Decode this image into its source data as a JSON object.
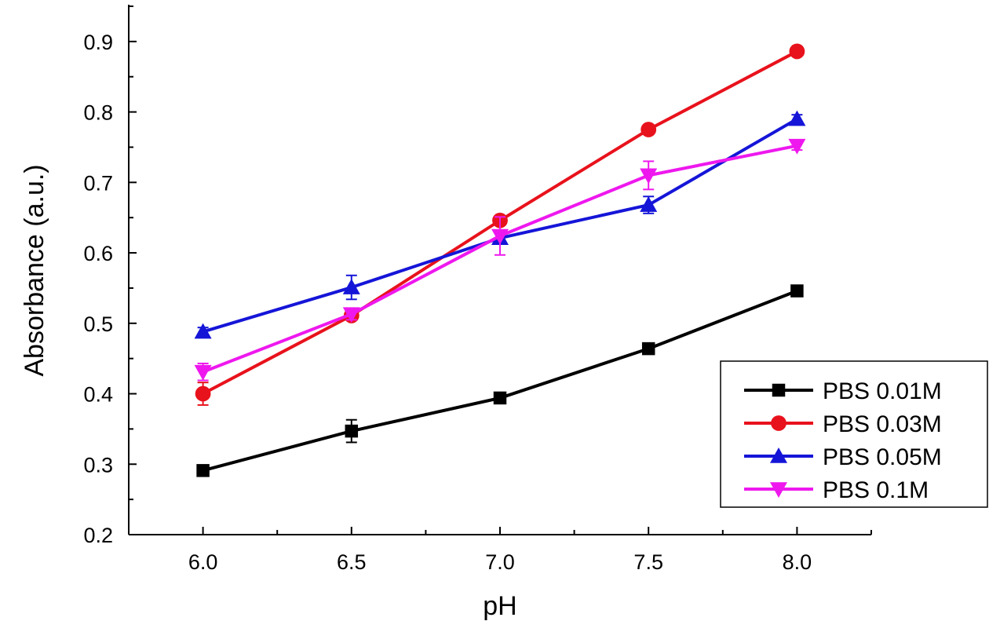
{
  "chart_data": {
    "type": "line",
    "title": "",
    "xlabel": "pH",
    "ylabel": "Absorbance (a.u.)",
    "x": [
      6.0,
      6.5,
      7.0,
      7.5,
      8.0
    ],
    "x_ticks": [
      "6.0",
      "6.5",
      "7.0",
      "7.5",
      "8.0"
    ],
    "y_ticks": [
      "0.2",
      "0.3",
      "0.4",
      "0.5",
      "0.6",
      "0.7",
      "0.8",
      "0.9"
    ],
    "xlim": [
      5.75,
      8.25
    ],
    "ylim": [
      0.2,
      0.95
    ],
    "grid": false,
    "legend_position": "bottom-right",
    "error_bars": true,
    "series": [
      {
        "name": "PBS 0.01M",
        "color": "#000000",
        "marker": "square",
        "values": [
          0.291,
          0.347,
          0.394,
          0.464,
          0.546
        ],
        "errors": [
          0.004,
          0.016,
          0.005,
          0.006,
          0.005
        ]
      },
      {
        "name": "PBS 0.03M",
        "color": "#e8121c",
        "marker": "circle",
        "values": [
          0.4,
          0.511,
          0.646,
          0.775,
          0.886
        ],
        "errors": [
          0.016,
          0.006,
          0.006,
          0.005,
          0.005
        ]
      },
      {
        "name": "PBS 0.05M",
        "color": "#1515d8",
        "marker": "triangle-up",
        "values": [
          0.488,
          0.551,
          0.621,
          0.668,
          0.79
        ],
        "errors": [
          0.006,
          0.017,
          0.008,
          0.012,
          0.006
        ]
      },
      {
        "name": "PBS 0.1M",
        "color": "#ee18ee",
        "marker": "triangle-down",
        "values": [
          0.431,
          0.513,
          0.624,
          0.71,
          0.752
        ],
        "errors": [
          0.012,
          0.008,
          0.027,
          0.02,
          0.006
        ]
      }
    ]
  }
}
